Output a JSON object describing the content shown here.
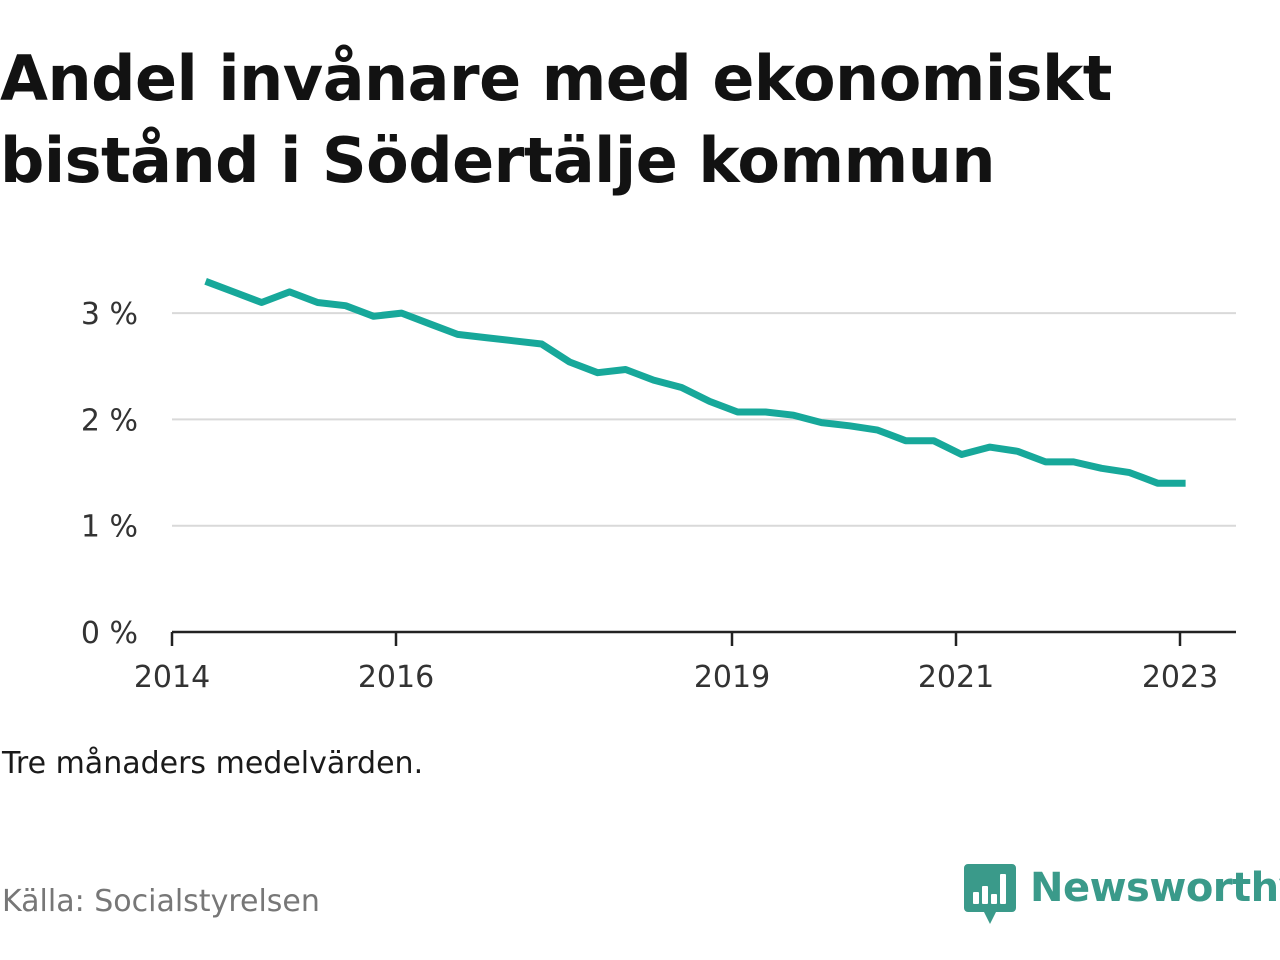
{
  "title": "Andel invånare med ekonomiskt bistånd i Södertälje kommun",
  "note": "Tre månaders medelvärden.",
  "source": "Källa: Socialstyrelsen",
  "brand": {
    "name": "Newsworthy",
    "icon": "newsworthy-logo-icon",
    "color": "#3a9a8a"
  },
  "colors": {
    "line": "#17a89a",
    "grid": "#d9d9d9",
    "axis": "#222222",
    "tick_text": "#333333"
  },
  "chart_data": {
    "type": "line",
    "title": "Andel invånare med ekonomiskt bistånd i Södertälje kommun",
    "xlabel": "",
    "ylabel": "",
    "xlim": [
      2014.0,
      2023.5
    ],
    "ylim": [
      0,
      3.5
    ],
    "x_ticks": [
      2014,
      2016,
      2019,
      2021,
      2023
    ],
    "x_tick_labels": [
      "2014",
      "2016",
      "2019",
      "2021",
      "2023"
    ],
    "y_ticks": [
      0,
      1,
      2,
      3
    ],
    "y_tick_labels": [
      "0 %",
      "1 %",
      "2 %",
      "3 %"
    ],
    "grid": true,
    "legend": "none",
    "series": [
      {
        "x": [
          2014.3,
          2014.55,
          2014.8,
          2015.05,
          2015.3,
          2015.55,
          2015.8,
          2016.05,
          2016.3,
          2016.55,
          2016.8,
          2017.05,
          2017.3,
          2017.55,
          2017.8,
          2018.05,
          2018.3,
          2018.55,
          2018.8,
          2019.05,
          2019.3,
          2019.55,
          2019.8,
          2020.05,
          2020.3,
          2020.55,
          2020.8,
          2021.05,
          2021.3,
          2021.55,
          2021.8,
          2022.05,
          2022.3,
          2022.55,
          2022.8,
          2023.05
        ],
        "values": [
          3.3,
          3.2,
          3.1,
          3.2,
          3.1,
          3.07,
          2.97,
          3.0,
          2.9,
          2.8,
          2.77,
          2.74,
          2.71,
          2.54,
          2.44,
          2.47,
          2.37,
          2.3,
          2.17,
          2.07,
          2.07,
          2.04,
          1.97,
          1.94,
          1.9,
          1.8,
          1.8,
          1.67,
          1.74,
          1.7,
          1.6,
          1.6,
          1.54,
          1.5,
          1.4,
          1.4
        ]
      }
    ]
  }
}
